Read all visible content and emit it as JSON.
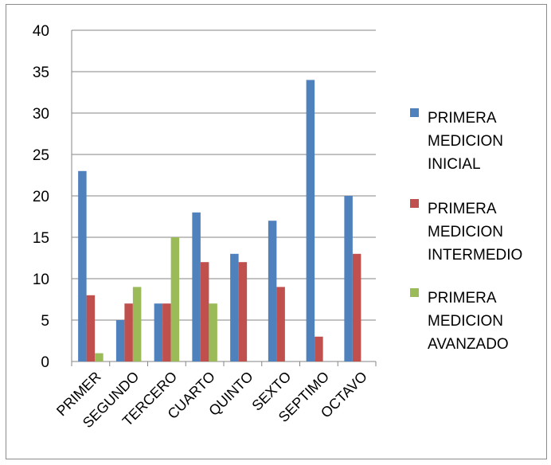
{
  "chart_data": {
    "type": "bar",
    "categories": [
      "PRIMER",
      "SEGUNDO",
      "TERCERO",
      "CUARTO",
      "QUINTO",
      "SEXTO",
      "SEPTIMO",
      "OCTAVO"
    ],
    "series": [
      {
        "name": "PRIMERA MEDICION INICIAL",
        "color": "#4f81bd",
        "values": [
          23,
          5,
          7,
          18,
          13,
          17,
          34,
          20
        ]
      },
      {
        "name": "PRIMERA MEDICION INTERMEDIO",
        "color": "#c0504d",
        "values": [
          8,
          7,
          7,
          12,
          12,
          9,
          3,
          13
        ]
      },
      {
        "name": "PRIMERA MEDICION AVANZADO",
        "color": "#9bbb59",
        "values": [
          1,
          9,
          15,
          7,
          0,
          0,
          0,
          0
        ]
      }
    ],
    "y_ticks": [
      "0",
      "5",
      "10",
      "15",
      "20",
      "25",
      "30",
      "35",
      "40"
    ],
    "ylim": [
      0,
      40
    ],
    "grid": true,
    "legend_position": "right",
    "legend_lines": [
      [
        "PRIMERA",
        "MEDICION",
        "INICIAL"
      ],
      [
        "PRIMERA",
        "MEDICION",
        "INTERMEDIO"
      ],
      [
        "PRIMERA",
        "MEDICION",
        "AVANZADO"
      ]
    ]
  }
}
